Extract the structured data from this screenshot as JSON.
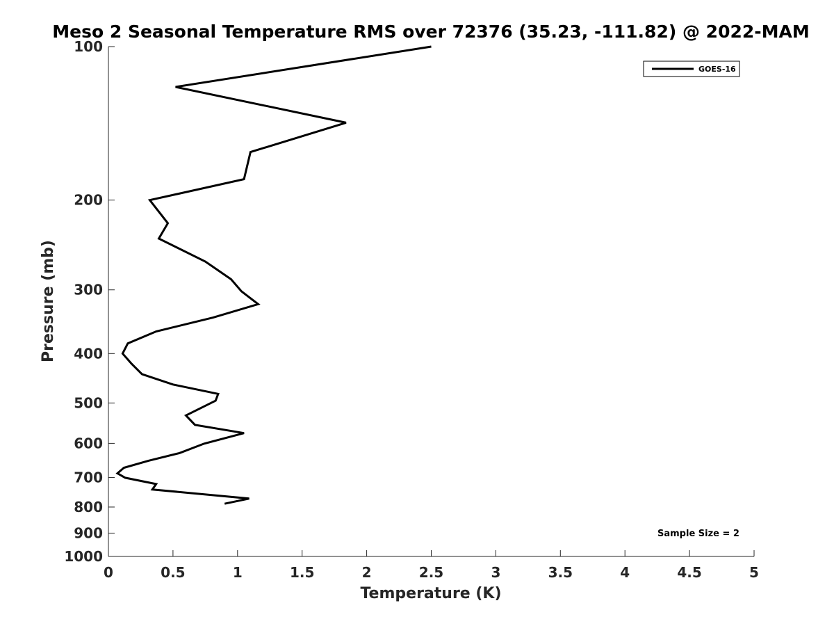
{
  "chart_data": {
    "type": "line",
    "title": "Meso 2 Seasonal Temperature RMS over 72376 (35.23, -111.82) @ 2022-MAM",
    "xlabel": "Temperature (K)",
    "ylabel": "Pressure (mb)",
    "xlim": [
      0,
      5
    ],
    "ylim": [
      100,
      1000
    ],
    "y_scale": "log",
    "y_reversed": true,
    "x_ticks": [
      "0",
      "0.5",
      "1",
      "1.5",
      "2",
      "2.5",
      "3",
      "3.5",
      "4",
      "4.5",
      "5"
    ],
    "x_tick_values": [
      0,
      0.5,
      1,
      1.5,
      2,
      2.5,
      3,
      3.5,
      4,
      4.5,
      5
    ],
    "y_ticks": [
      "100",
      "200",
      "300",
      "400",
      "500",
      "600",
      "700",
      "800",
      "900",
      "1000"
    ],
    "y_tick_values": [
      100,
      200,
      300,
      400,
      500,
      600,
      700,
      800,
      900,
      1000
    ],
    "grid": false,
    "legend_position": "top-right",
    "series": [
      {
        "name": "GOES-16",
        "color": "#000000",
        "x": [
          2.5,
          0.52,
          1.84,
          1.1,
          1.05,
          0.32,
          0.46,
          0.39,
          0.75,
          0.95,
          1.03,
          1.16,
          0.81,
          0.37,
          0.15,
          0.11,
          0.18,
          0.26,
          0.5,
          0.85,
          0.83,
          0.6,
          0.67,
          1.05,
          0.74,
          0.55,
          0.31,
          0.12,
          0.07,
          0.13,
          0.37,
          0.34,
          1.09,
          0.9
        ],
        "y": [
          100,
          120,
          141,
          161,
          182,
          200,
          222,
          238,
          264,
          286,
          302,
          320,
          340,
          362,
          382,
          400,
          419,
          439,
          460,
          480,
          495,
          529,
          552,
          573,
          601,
          627,
          649,
          670,
          687,
          701,
          721,
          739,
          770,
          788
        ]
      }
    ],
    "annotations": [
      "Sample Size = 2"
    ]
  }
}
